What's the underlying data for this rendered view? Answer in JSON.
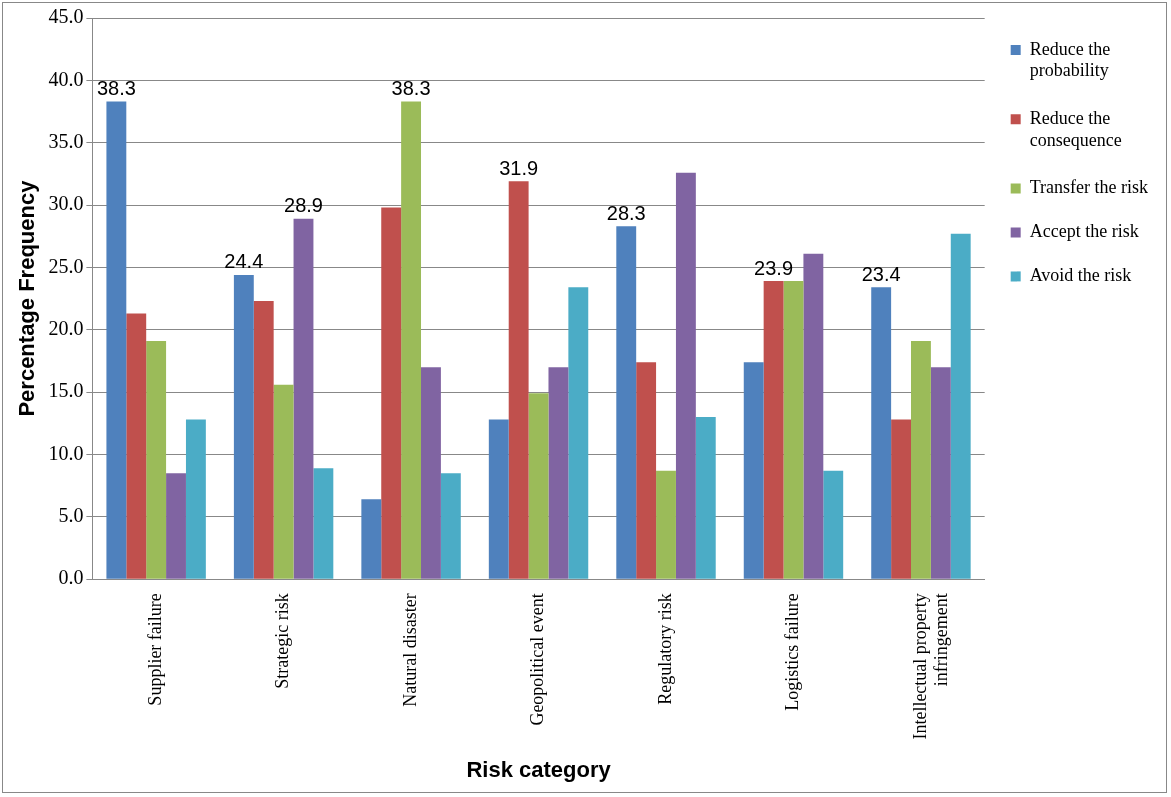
{
  "chart_data": {
    "type": "bar",
    "xlabel": "Risk category",
    "ylabel": "Percentage Frequency",
    "categories": [
      "Supplier failure",
      "Strategic risk",
      "Natural disaster",
      "Geopolitical event",
      "Regulatory risk",
      "Logistics failure",
      "Intellectual property infringement"
    ],
    "series": [
      {
        "name": "Reduce the probability",
        "color": "#4f81bd",
        "values": [
          38.3,
          24.4,
          6.4,
          12.8,
          28.3,
          17.4,
          23.4
        ],
        "value_labels": [
          "38.3",
          "24.4",
          null,
          null,
          "28.3",
          null,
          "23.4"
        ]
      },
      {
        "name": "Reduce the consequence",
        "color": "#c0504d",
        "values": [
          21.3,
          22.3,
          29.8,
          31.9,
          17.4,
          23.9,
          12.8
        ],
        "value_labels": [
          null,
          null,
          null,
          "31.9",
          null,
          "23.9",
          null
        ]
      },
      {
        "name": "Transfer the risk",
        "color": "#9bbb59",
        "values": [
          19.1,
          15.6,
          38.3,
          14.9,
          8.7,
          23.9,
          19.1
        ],
        "value_labels": [
          null,
          null,
          "38.3",
          null,
          null,
          null,
          null
        ]
      },
      {
        "name": "Accept the risk",
        "color": "#8064a2",
        "values": [
          8.5,
          28.9,
          17.0,
          17.0,
          32.6,
          26.1,
          17.0
        ],
        "value_labels": [
          null,
          "28.9",
          null,
          null,
          null,
          null,
          null
        ]
      },
      {
        "name": "Avoid the risk",
        "color": "#4bacc6",
        "values": [
          12.8,
          8.9,
          8.5,
          23.4,
          13.0,
          8.7,
          27.7
        ]
      }
    ],
    "ylim": [
      0,
      45
    ],
    "yticks": [
      {
        "value": 0,
        "label": "0.0"
      },
      {
        "value": 5,
        "label": "5.0"
      },
      {
        "value": 10,
        "label": "10.0"
      },
      {
        "value": 15,
        "label": "15.0"
      },
      {
        "value": 20,
        "label": "20.0"
      },
      {
        "value": 25,
        "label": "25.0"
      },
      {
        "value": 30,
        "label": "30.0"
      },
      {
        "value": 35,
        "label": "35.0"
      },
      {
        "value": 40,
        "label": "40.0"
      },
      {
        "value": 45,
        "label": "45.0"
      }
    ],
    "grid": "y",
    "legend": "right"
  }
}
